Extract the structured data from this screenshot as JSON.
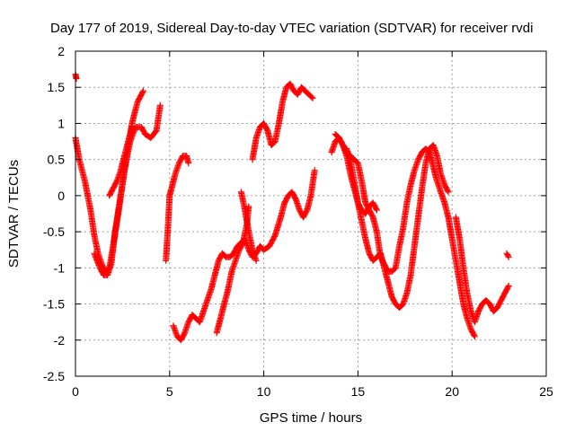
{
  "chart_data": {
    "type": "scatter",
    "title": "Day 177 of 2019, Sidereal Day-to-day VTEC variation (SDTVAR) for receiver rvdi",
    "xlabel": "GPS time / hours",
    "ylabel": "SDTVAR / TECUs",
    "xlim": [
      0,
      25
    ],
    "ylim": [
      -2.5,
      2
    ],
    "xticks": [
      0,
      5,
      10,
      15,
      20,
      25
    ],
    "xtick_labels": [
      "0",
      "5",
      "10",
      "15",
      "20",
      "25"
    ],
    "yticks": [
      2,
      1.5,
      1,
      0.5,
      0,
      -0.5,
      -1,
      -1.5,
      -2,
      -2.5
    ],
    "ytick_labels": [
      "2",
      "1.5",
      "1",
      "0.5",
      "0",
      "-0.5",
      "-1",
      "-1.5",
      "-2",
      "-2.5"
    ],
    "grid": true,
    "marker": "+",
    "color": "#ff0000",
    "series": [
      {
        "name": "s1",
        "x": [
          0.0,
          0.05
        ],
        "y": [
          1.68,
          1.62
        ]
      },
      {
        "name": "s2",
        "x": [
          0.0,
          0.2,
          0.5,
          0.8,
          1.0,
          1.2,
          1.4,
          1.6,
          1.8,
          2.0,
          2.3,
          2.6,
          2.9,
          3.2,
          3.5,
          3.7,
          4.0,
          4.3,
          4.5
        ],
        "y": [
          0.8,
          0.5,
          0.2,
          -0.2,
          -0.55,
          -0.8,
          -0.95,
          -1.05,
          -1.0,
          -0.7,
          -0.2,
          0.35,
          0.75,
          0.95,
          0.95,
          0.85,
          0.8,
          0.9,
          1.25
        ]
      },
      {
        "name": "s3",
        "x": [
          1.0,
          1.3,
          1.5,
          1.7,
          1.9,
          2.1,
          2.4,
          2.7,
          3.0,
          3.3,
          3.6
        ],
        "y": [
          -0.8,
          -1.0,
          -1.1,
          -1.1,
          -0.95,
          -0.5,
          0.0,
          0.5,
          1.0,
          1.3,
          1.45
        ]
      },
      {
        "name": "s4",
        "x": [
          1.8,
          2.0,
          2.2,
          2.4,
          2.6,
          2.8,
          3.0
        ],
        "y": [
          0.0,
          0.1,
          0.2,
          0.35,
          0.55,
          0.75,
          0.95
        ]
      },
      {
        "name": "s5",
        "x": [
          4.8,
          4.9,
          5.0,
          5.1,
          5.3,
          5.5,
          5.7,
          5.9,
          6.0
        ],
        "y": [
          -0.9,
          -0.5,
          0.0,
          0.1,
          0.3,
          0.45,
          0.55,
          0.55,
          0.45
        ]
      },
      {
        "name": "s6",
        "x": [
          5.2,
          5.4,
          5.6,
          5.8,
          6.0,
          6.2,
          6.4,
          6.6,
          6.8,
          7.0,
          7.2,
          7.4,
          7.6,
          7.8,
          8.0,
          8.2,
          8.4,
          8.6,
          8.8,
          9.0,
          9.2,
          9.4,
          9.6,
          9.8,
          10.0,
          10.3,
          10.6,
          10.9,
          11.1,
          11.3,
          11.5,
          11.7,
          11.9,
          12.1,
          12.3,
          12.5,
          12.7
        ],
        "y": [
          -1.8,
          -1.95,
          -2.0,
          -1.9,
          -1.75,
          -1.65,
          -1.7,
          -1.75,
          -1.6,
          -1.45,
          -1.3,
          -1.1,
          -0.9,
          -0.8,
          -0.85,
          -0.85,
          -0.8,
          -0.7,
          -0.65,
          -0.6,
          -0.75,
          -0.85,
          -0.8,
          -0.7,
          -0.75,
          -0.7,
          -0.55,
          -0.3,
          -0.1,
          0.0,
          0.05,
          -0.05,
          -0.2,
          -0.3,
          -0.2,
          0.0,
          0.35
        ]
      },
      {
        "name": "s7",
        "x": [
          7.5,
          7.7,
          7.9,
          8.1,
          8.3,
          8.5,
          8.7,
          8.9,
          9.1,
          9.2
        ],
        "y": [
          -1.9,
          -1.7,
          -1.5,
          -1.3,
          -1.05,
          -0.9,
          -0.75,
          -0.65,
          -0.4,
          -0.15
        ]
      },
      {
        "name": "s8",
        "x": [
          8.8,
          9.0,
          9.2,
          9.4,
          9.6
        ],
        "y": [
          0.05,
          -0.2,
          -0.5,
          -0.75,
          -0.9
        ]
      },
      {
        "name": "s9",
        "x": [
          9.4,
          9.6,
          9.8,
          10.0,
          10.2,
          10.4,
          10.6,
          10.8,
          11.0,
          11.2,
          11.4,
          11.6,
          11.8,
          12.0,
          12.2,
          12.4,
          12.6
        ],
        "y": [
          0.5,
          0.8,
          0.95,
          1.0,
          0.9,
          0.7,
          0.75,
          1.0,
          1.3,
          1.5,
          1.55,
          1.45,
          1.4,
          1.5,
          1.45,
          1.4,
          1.35
        ]
      },
      {
        "name": "s10",
        "x": [
          13.6,
          13.8,
          14.0,
          14.2,
          14.4,
          14.6,
          14.8,
          15.0,
          15.2,
          15.4,
          15.6,
          15.8,
          16.0,
          16.2,
          16.4,
          16.6,
          16.8,
          17.0,
          17.2,
          17.4,
          17.6,
          17.8,
          18.0,
          18.2,
          18.4,
          18.6,
          18.8,
          19.0,
          19.2,
          19.4,
          19.6,
          19.8,
          20.0,
          20.2,
          20.4,
          20.6,
          20.8,
          21.0,
          21.2
        ],
        "y": [
          0.6,
          0.75,
          0.8,
          0.7,
          0.6,
          0.55,
          0.5,
          0.45,
          0.2,
          -0.1,
          -0.2,
          -0.3,
          -0.5,
          -0.85,
          -0.95,
          -1.05,
          -1.05,
          -1.0,
          -0.7,
          -0.45,
          -0.1,
          0.15,
          0.35,
          0.5,
          0.6,
          0.65,
          0.6,
          0.4,
          0.2,
          0.05,
          -0.1,
          -0.3,
          -0.6,
          -0.9,
          -1.2,
          -1.5,
          -1.7,
          -1.85,
          -1.95
        ]
      },
      {
        "name": "s11",
        "x": [
          13.8,
          14.0,
          14.2,
          14.4,
          14.6,
          14.8,
          15.0,
          15.2,
          15.4,
          15.6,
          15.8,
          16.0,
          16.2,
          16.4,
          16.6,
          16.8,
          17.0,
          17.2,
          17.4,
          17.6,
          17.8,
          18.0,
          18.2,
          18.4,
          18.6,
          18.8,
          19.0,
          19.2,
          19.4,
          19.6,
          19.8
        ],
        "y": [
          0.85,
          0.8,
          0.7,
          0.55,
          0.3,
          0.1,
          -0.1,
          -0.35,
          -0.6,
          -0.8,
          -0.9,
          -0.85,
          -0.8,
          -1.0,
          -1.2,
          -1.4,
          -1.5,
          -1.55,
          -1.5,
          -1.35,
          -1.1,
          -0.7,
          -0.3,
          0.1,
          0.45,
          0.65,
          0.7,
          0.55,
          0.3,
          0.15,
          0.05
        ]
      },
      {
        "name": "s12",
        "x": [
          14.4,
          14.6,
          14.8,
          15.0,
          15.2,
          15.4,
          15.6,
          15.8,
          16.0
        ],
        "y": [
          0.65,
          0.5,
          0.2,
          -0.1,
          -0.2,
          -0.25,
          -0.15,
          -0.1,
          -0.2
        ]
      },
      {
        "name": "s13",
        "x": [
          20.2,
          20.4,
          20.6,
          20.8,
          21.0,
          21.2,
          21.4,
          21.6,
          21.8,
          22.0,
          22.2,
          22.4,
          22.6,
          22.8,
          23.0
        ],
        "y": [
          -0.3,
          -0.6,
          -1.0,
          -1.35,
          -1.6,
          -1.75,
          -1.6,
          -1.5,
          -1.45,
          -1.5,
          -1.6,
          -1.55,
          -1.45,
          -1.35,
          -1.25
        ]
      },
      {
        "name": "s14",
        "x": [
          22.9,
          23.0
        ],
        "y": [
          -0.8,
          -0.85
        ]
      }
    ]
  }
}
